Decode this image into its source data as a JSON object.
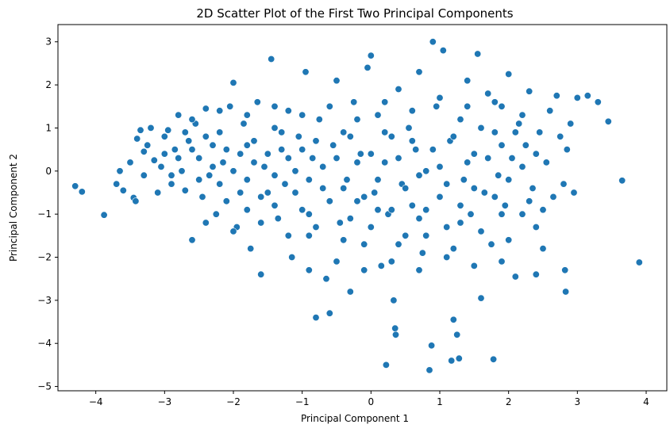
{
  "chart_data": {
    "type": "scatter",
    "title": "2D Scatter Plot of the First Two Principal Components",
    "xlabel": "Principal Component 1",
    "ylabel": "Principal Component 2",
    "xlim": [
      -4.55,
      4.3
    ],
    "ylim": [
      -5.1,
      3.4
    ],
    "xticks": [
      -4,
      -3,
      -2,
      -1,
      0,
      1,
      2,
      3,
      4
    ],
    "yticks": [
      -5,
      -4,
      -3,
      -2,
      -1,
      0,
      1,
      2,
      3
    ],
    "grid": false,
    "color": "#1f77b4",
    "points": [
      [
        -4.3,
        -0.35
      ],
      [
        -4.2,
        -0.48
      ],
      [
        -3.88,
        -1.02
      ],
      [
        -3.7,
        -0.3
      ],
      [
        -3.65,
        0.0
      ],
      [
        -3.6,
        -0.45
      ],
      [
        -3.5,
        0.2
      ],
      [
        -3.45,
        -0.62
      ],
      [
        -3.42,
        -0.7
      ],
      [
        -3.4,
        0.75
      ],
      [
        -3.35,
        0.95
      ],
      [
        -3.3,
        -0.1
      ],
      [
        -3.3,
        0.45
      ],
      [
        -3.25,
        0.6
      ],
      [
        -3.2,
        1.0
      ],
      [
        -3.15,
        0.25
      ],
      [
        -3.1,
        -0.5
      ],
      [
        -3.05,
        0.1
      ],
      [
        -3.0,
        0.8
      ],
      [
        -2.95,
        0.95
      ],
      [
        -2.9,
        -0.3
      ],
      [
        -2.85,
        0.5
      ],
      [
        -2.8,
        1.3
      ],
      [
        -2.75,
        0.0
      ],
      [
        -2.7,
        -0.45
      ],
      [
        -2.65,
        0.7
      ],
      [
        -2.6,
        -1.6
      ],
      [
        -2.55,
        1.1
      ],
      [
        -2.5,
        0.3
      ],
      [
        -2.45,
        -0.6
      ],
      [
        -2.4,
        1.45
      ],
      [
        -2.35,
        -0.1
      ],
      [
        -2.3,
        0.6
      ],
      [
        -2.25,
        -1.0
      ],
      [
        -2.2,
        0.9
      ],
      [
        -2.15,
        0.2
      ],
      [
        -2.1,
        -0.7
      ],
      [
        -2.05,
        1.5
      ],
      [
        -2.0,
        2.05
      ],
      [
        -1.95,
        -1.3
      ],
      [
        -1.9,
        0.4
      ],
      [
        -1.85,
        1.1
      ],
      [
        -1.8,
        -0.2
      ],
      [
        -1.75,
        -1.8
      ],
      [
        -1.7,
        0.7
      ],
      [
        -1.65,
        1.6
      ],
      [
        -1.6,
        -2.4
      ],
      [
        -1.55,
        0.1
      ],
      [
        -1.5,
        -0.5
      ],
      [
        -1.45,
        2.6
      ],
      [
        -1.4,
        1.0
      ],
      [
        -1.35,
        -1.1
      ],
      [
        -1.3,
        0.5
      ],
      [
        -1.25,
        -0.3
      ],
      [
        -1.2,
        1.4
      ],
      [
        -1.15,
        -2.0
      ],
      [
        -1.1,
        0.0
      ],
      [
        -1.05,
        0.8
      ],
      [
        -1.0,
        -0.9
      ],
      [
        -0.95,
        2.3
      ],
      [
        -0.9,
        -1.5
      ],
      [
        -0.85,
        0.3
      ],
      [
        -0.8,
        -3.4
      ],
      [
        -0.75,
        1.2
      ],
      [
        -0.7,
        -0.4
      ],
      [
        -0.65,
        -2.5
      ],
      [
        -0.6,
        -3.3
      ],
      [
        -0.55,
        0.6
      ],
      [
        -0.5,
        2.1
      ],
      [
        -0.45,
        -1.2
      ],
      [
        -0.4,
        0.9
      ],
      [
        -0.35,
        -0.2
      ],
      [
        -0.3,
        -2.8
      ],
      [
        -0.25,
        1.6
      ],
      [
        -0.2,
        -0.7
      ],
      [
        -0.15,
        0.4
      ],
      [
        -0.1,
        -1.7
      ],
      [
        -0.05,
        2.4
      ],
      [
        0.0,
        2.68
      ],
      [
        0.05,
        -0.5
      ],
      [
        0.1,
        1.3
      ],
      [
        0.15,
        -2.2
      ],
      [
        0.2,
        0.2
      ],
      [
        0.22,
        -4.5
      ],
      [
        0.25,
        -1.0
      ],
      [
        0.3,
        0.8
      ],
      [
        0.33,
        -3.0
      ],
      [
        0.35,
        -3.65
      ],
      [
        0.36,
        -3.8
      ],
      [
        0.4,
        1.9
      ],
      [
        0.45,
        -0.3
      ],
      [
        0.5,
        -1.5
      ],
      [
        0.55,
        1.0
      ],
      [
        0.6,
        -0.8
      ],
      [
        0.65,
        0.5
      ],
      [
        0.7,
        2.3
      ],
      [
        0.75,
        -1.9
      ],
      [
        0.8,
        0.0
      ],
      [
        0.85,
        -4.62
      ],
      [
        0.88,
        -4.05
      ],
      [
        0.9,
        3.0
      ],
      [
        0.95,
        1.5
      ],
      [
        1.0,
        -0.6
      ],
      [
        1.05,
        2.8
      ],
      [
        1.1,
        -1.3
      ],
      [
        1.15,
        0.7
      ],
      [
        1.17,
        -4.4
      ],
      [
        1.2,
        -3.45
      ],
      [
        1.25,
        -3.8
      ],
      [
        1.28,
        -4.35
      ],
      [
        1.3,
        1.2
      ],
      [
        1.35,
        -0.2
      ],
      [
        1.4,
        2.1
      ],
      [
        1.45,
        -1.0
      ],
      [
        1.5,
        0.4
      ],
      [
        1.55,
        2.72
      ],
      [
        1.6,
        -2.95
      ],
      [
        1.65,
        -0.5
      ],
      [
        1.7,
        1.8
      ],
      [
        1.75,
        -1.7
      ],
      [
        1.78,
        -4.37
      ],
      [
        1.8,
        0.9
      ],
      [
        1.85,
        -0.1
      ],
      [
        1.9,
        1.5
      ],
      [
        1.95,
        -0.8
      ],
      [
        2.0,
        2.25
      ],
      [
        2.05,
        0.3
      ],
      [
        2.1,
        -2.45
      ],
      [
        2.15,
        1.1
      ],
      [
        2.2,
        -1.0
      ],
      [
        2.25,
        0.6
      ],
      [
        2.3,
        1.85
      ],
      [
        2.35,
        -0.4
      ],
      [
        2.4,
        -2.4
      ],
      [
        2.45,
        0.9
      ],
      [
        2.5,
        -1.8
      ],
      [
        2.55,
        0.2
      ],
      [
        2.6,
        1.4
      ],
      [
        2.65,
        -0.6
      ],
      [
        2.7,
        1.75
      ],
      [
        2.75,
        0.8
      ],
      [
        2.8,
        -0.3
      ],
      [
        2.82,
        -2.3
      ],
      [
        2.83,
        -2.8
      ],
      [
        2.85,
        0.5
      ],
      [
        2.9,
        1.1
      ],
      [
        2.95,
        -0.5
      ],
      [
        3.0,
        1.7
      ],
      [
        3.15,
        1.75
      ],
      [
        3.3,
        1.6
      ],
      [
        3.45,
        1.15
      ],
      [
        3.65,
        -0.22
      ],
      [
        3.9,
        -2.12
      ],
      [
        -3.0,
        0.4
      ],
      [
        -2.9,
        -0.1
      ],
      [
        -2.8,
        0.3
      ],
      [
        -2.7,
        0.9
      ],
      [
        -2.6,
        0.5
      ],
      [
        -2.5,
        -0.2
      ],
      [
        -2.4,
        0.8
      ],
      [
        -2.3,
        0.1
      ],
      [
        -2.2,
        -0.3
      ],
      [
        -2.1,
        0.5
      ],
      [
        -2.0,
        0.0
      ],
      [
        -1.9,
        -0.5
      ],
      [
        -1.8,
        0.6
      ],
      [
        -1.7,
        0.2
      ],
      [
        -1.6,
        -0.6
      ],
      [
        -1.5,
        0.4
      ],
      [
        -1.4,
        -0.1
      ],
      [
        -1.3,
        0.9
      ],
      [
        -1.2,
        0.3
      ],
      [
        -1.1,
        -0.5
      ],
      [
        -1.0,
        0.5
      ],
      [
        -0.9,
        -0.2
      ],
      [
        -0.8,
        0.7
      ],
      [
        -0.7,
        0.1
      ],
      [
        -0.6,
        -0.7
      ],
      [
        -0.5,
        0.3
      ],
      [
        -0.4,
        -0.4
      ],
      [
        -0.3,
        0.8
      ],
      [
        -0.2,
        0.2
      ],
      [
        -0.1,
        -0.6
      ],
      [
        0.0,
        0.4
      ],
      [
        0.1,
        -0.2
      ],
      [
        0.2,
        0.9
      ],
      [
        0.3,
        -0.9
      ],
      [
        0.4,
        0.3
      ],
      [
        0.5,
        -0.4
      ],
      [
        0.6,
        0.7
      ],
      [
        0.7,
        -0.1
      ],
      [
        0.8,
        -0.9
      ],
      [
        0.9,
        0.5
      ],
      [
        1.0,
        0.1
      ],
      [
        1.1,
        -0.3
      ],
      [
        1.2,
        0.8
      ],
      [
        1.3,
        -0.8
      ],
      [
        1.4,
        0.2
      ],
      [
        1.5,
        -0.4
      ],
      [
        1.6,
        1.0
      ],
      [
        1.7,
        0.3
      ],
      [
        1.8,
        -0.6
      ],
      [
        1.9,
        0.6
      ],
      [
        2.0,
        -0.2
      ],
      [
        2.1,
        0.9
      ],
      [
        2.2,
        0.1
      ],
      [
        2.3,
        -0.7
      ],
      [
        2.4,
        0.4
      ],
      [
        -2.6,
        1.2
      ],
      [
        -2.2,
        1.4
      ],
      [
        -1.8,
        1.3
      ],
      [
        -1.4,
        1.5
      ],
      [
        -1.0,
        1.3
      ],
      [
        -0.6,
        1.5
      ],
      [
        -0.2,
        1.2
      ],
      [
        0.2,
        1.6
      ],
      [
        0.6,
        1.4
      ],
      [
        1.0,
        1.7
      ],
      [
        1.4,
        1.5
      ],
      [
        1.8,
        1.6
      ],
      [
        2.2,
        1.3
      ],
      [
        -2.4,
        -1.2
      ],
      [
        -2.0,
        -1.4
      ],
      [
        -1.6,
        -1.2
      ],
      [
        -1.2,
        -1.5
      ],
      [
        -0.8,
        -1.3
      ],
      [
        -0.4,
        -1.6
      ],
      [
        0.0,
        -1.3
      ],
      [
        0.4,
        -1.7
      ],
      [
        0.8,
        -1.5
      ],
      [
        1.2,
        -1.8
      ],
      [
        1.6,
        -1.4
      ],
      [
        2.0,
        -1.6
      ],
      [
        2.4,
        -1.3
      ],
      [
        -0.9,
        -2.3
      ],
      [
        -0.5,
        -2.1
      ],
      [
        -0.1,
        -2.3
      ],
      [
        0.3,
        -2.1
      ],
      [
        0.7,
        -2.3
      ],
      [
        1.1,
        -2.0
      ],
      [
        1.5,
        -2.2
      ],
      [
        1.9,
        -2.1
      ],
      [
        -1.8,
        -0.9
      ],
      [
        -1.4,
        -0.8
      ],
      [
        -0.9,
        -1.0
      ],
      [
        -0.3,
        -1.1
      ],
      [
        0.1,
        -0.9
      ],
      [
        0.7,
        -1.1
      ],
      [
        1.3,
        -1.2
      ],
      [
        1.9,
        -1.0
      ],
      [
        2.5,
        -0.9
      ]
    ]
  }
}
